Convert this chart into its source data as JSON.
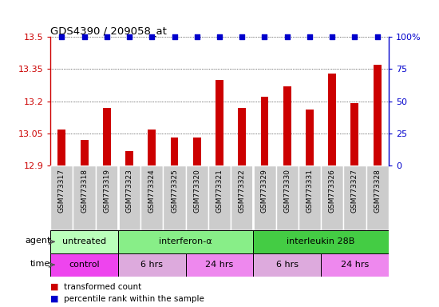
{
  "title": "GDS4390 / 209058_at",
  "samples": [
    "GSM773317",
    "GSM773318",
    "GSM773319",
    "GSM773323",
    "GSM773324",
    "GSM773325",
    "GSM773320",
    "GSM773321",
    "GSM773322",
    "GSM773329",
    "GSM773330",
    "GSM773331",
    "GSM773326",
    "GSM773327",
    "GSM773328"
  ],
  "bar_values": [
    13.07,
    13.02,
    13.17,
    12.97,
    13.07,
    13.03,
    13.03,
    13.3,
    13.17,
    13.22,
    13.27,
    13.16,
    13.33,
    13.19,
    13.37
  ],
  "ylim": [
    12.9,
    13.5
  ],
  "yticks": [
    12.9,
    13.05,
    13.2,
    13.35,
    13.5
  ],
  "y2ticks": [
    0,
    25,
    50,
    75,
    100
  ],
  "y2labels": [
    "0",
    "25",
    "50",
    "75",
    "100%"
  ],
  "bar_color": "#cc0000",
  "dot_color": "#0000cc",
  "tick_bg": "#cccccc",
  "agent_groups": [
    {
      "label": "untreated",
      "start": 0,
      "end": 3,
      "color": "#bbffbb"
    },
    {
      "label": "interferon-α",
      "start": 3,
      "end": 9,
      "color": "#88ee88"
    },
    {
      "label": "interleukin 28B",
      "start": 9,
      "end": 15,
      "color": "#44cc44"
    }
  ],
  "time_groups": [
    {
      "label": "control",
      "start": 0,
      "end": 3,
      "color": "#ee44ee"
    },
    {
      "label": "6 hrs",
      "start": 3,
      "end": 6,
      "color": "#ddaadd"
    },
    {
      "label": "24 hrs",
      "start": 6,
      "end": 9,
      "color": "#ee88ee"
    },
    {
      "label": "6 hrs",
      "start": 9,
      "end": 12,
      "color": "#ddaadd"
    },
    {
      "label": "24 hrs",
      "start": 12,
      "end": 15,
      "color": "#ee88ee"
    }
  ],
  "legend": [
    {
      "label": "transformed count",
      "color": "#cc0000"
    },
    {
      "label": "percentile rank within the sample",
      "color": "#0000cc"
    }
  ],
  "n_samples": 15,
  "bar_width": 0.35
}
